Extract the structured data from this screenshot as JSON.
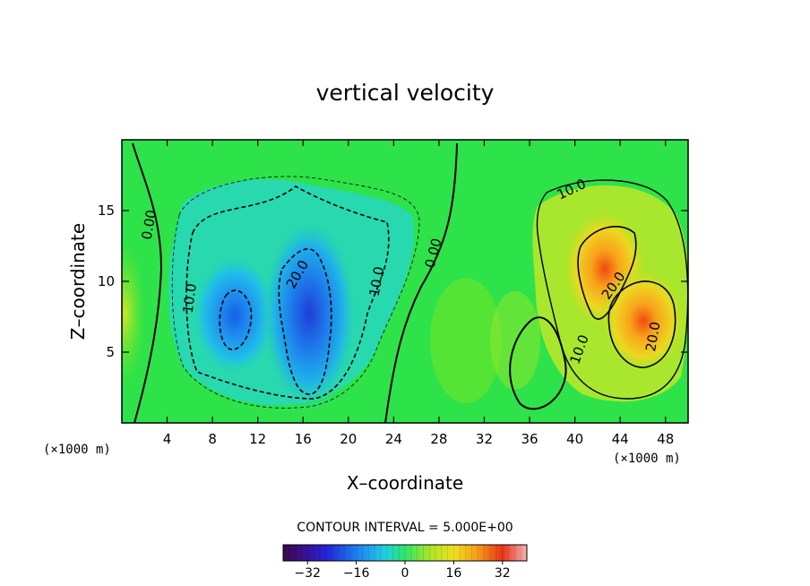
{
  "chart_data": {
    "type": "heatmap",
    "title": "vertical velocity",
    "xlabel": "X–coordinate",
    "ylabel": "Z–coordinate",
    "x_unit": "(×1000 m)",
    "y_unit": "(×1000 m)",
    "xlim": [
      0,
      50
    ],
    "ylim": [
      0,
      20
    ],
    "x_ticks": [
      4,
      8,
      12,
      16,
      20,
      24,
      28,
      32,
      36,
      40,
      44,
      48
    ],
    "x_tick_labels": [
      "4",
      "8",
      "12",
      "16",
      "20",
      "24",
      "28",
      "32",
      "36",
      "40",
      "44",
      "48"
    ],
    "y_ticks": [
      5,
      10,
      15
    ],
    "y_tick_labels": [
      "5",
      "10",
      "15"
    ],
    "contour_interval_text": "CONTOUR INTERVAL = 5.000E+00",
    "contour_interval": 5,
    "colorbar": {
      "vmin": -40,
      "vmax": 40,
      "ticks": [
        -32,
        -16,
        0,
        16,
        32
      ],
      "tick_labels": [
        "−32",
        "−16",
        "0",
        "16",
        "32"
      ],
      "colormap": "rainbow (purple-blue-cyan-green-yellow-red-pink)"
    },
    "contour_labels": [
      {
        "text": "0.00",
        "x": 2.4,
        "z": 14.0,
        "angle": -80
      },
      {
        "text": "10.0",
        "x": 6.0,
        "z": 8.8,
        "angle": -82
      },
      {
        "text": "20.0",
        "x": 15.5,
        "z": 10.5,
        "angle": -60
      },
      {
        "text": "10.0",
        "x": 22.5,
        "z": 10.0,
        "angle": -80
      },
      {
        "text": "0.00",
        "x": 27.5,
        "z": 12.0,
        "angle": -75
      },
      {
        "text": "10.0",
        "x": 39.7,
        "z": 16.5,
        "angle": -25
      },
      {
        "text": "20.0",
        "x": 43.4,
        "z": 9.7,
        "angle": -55
      },
      {
        "text": "10.0",
        "x": 40.4,
        "z": 5.2,
        "angle": -70
      },
      {
        "text": "20.0",
        "x": 46.9,
        "z": 6.1,
        "angle": -80
      }
    ],
    "features": [
      {
        "name": "downdraft",
        "x_center": 16,
        "z_center": 9,
        "min": -30
      },
      {
        "name": "updraft",
        "x_center": 44.5,
        "z_center": 9,
        "max": 30
      }
    ]
  }
}
